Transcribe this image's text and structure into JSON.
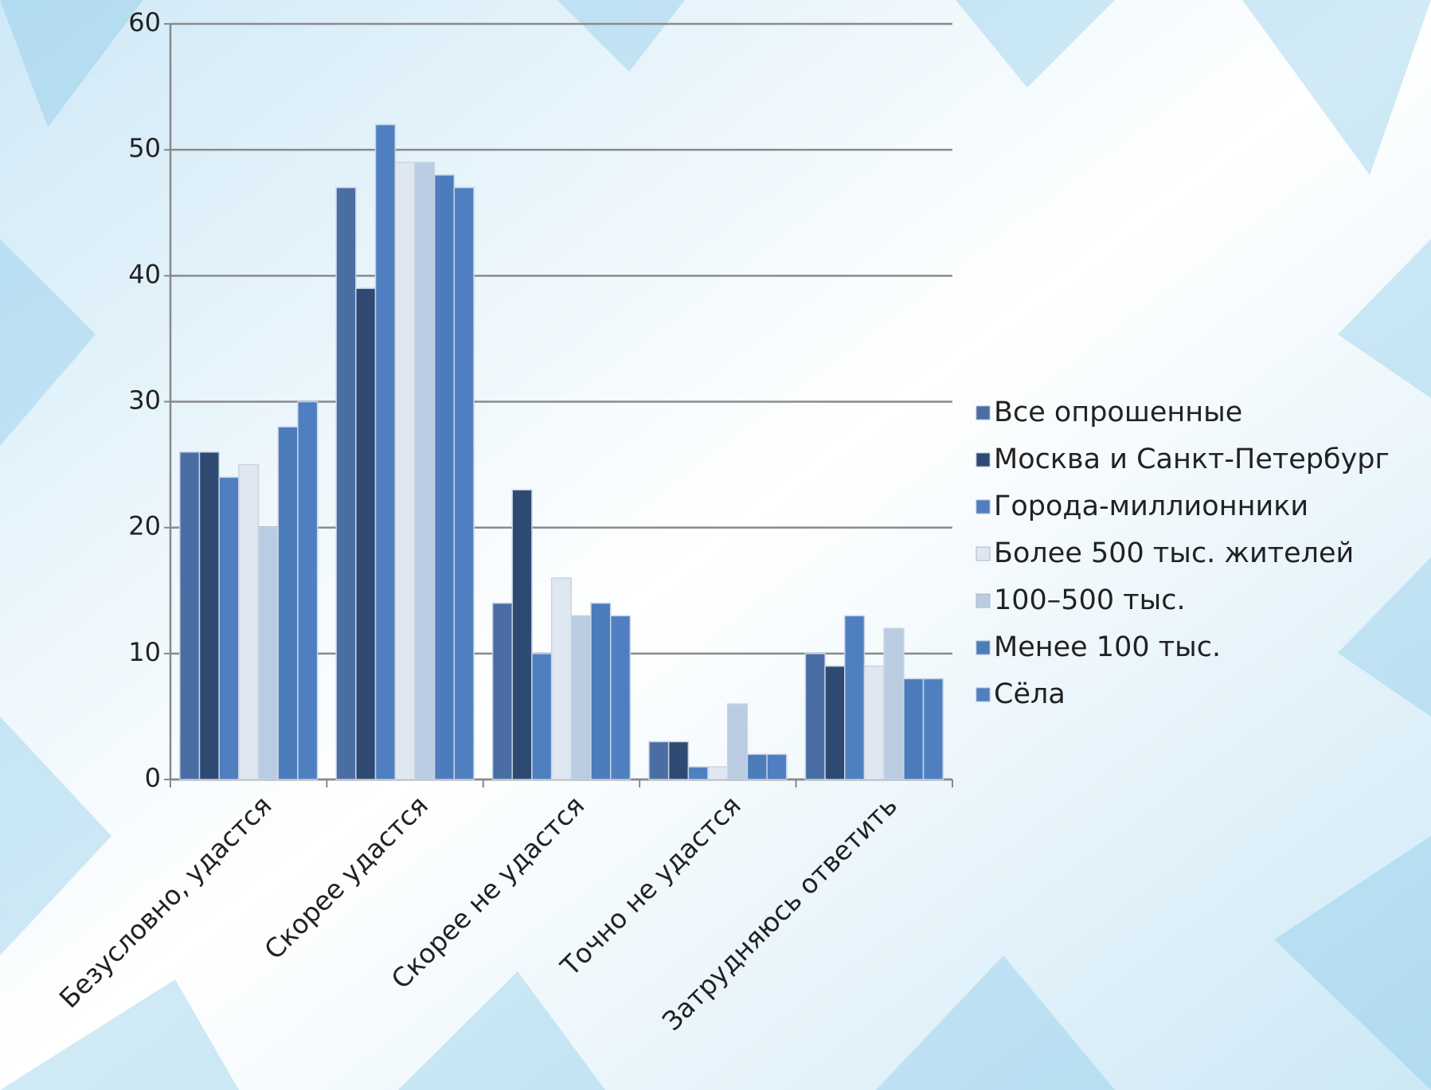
{
  "chart_data": {
    "type": "bar",
    "categories": [
      "Безусловно, удастся",
      "Скорее удастся",
      "Скорее не удастся",
      "Точно не удастся",
      "Затрудняюсь ответить"
    ],
    "series": [
      {
        "name": "Все опрошенные",
        "color": "#4a6ea3",
        "values": [
          26,
          47,
          14,
          3,
          10
        ]
      },
      {
        "name": "Москва и Санкт-Петербург",
        "color": "#2e4a72",
        "values": [
          26,
          39,
          23,
          3,
          9
        ]
      },
      {
        "name": "Города-миллионники",
        "color": "#4f7fc0",
        "values": [
          24,
          52,
          10,
          1,
          13
        ]
      },
      {
        "name": "Более 500 тыс. жителей",
        "color": "#dfe7f1",
        "values": [
          25,
          49,
          16,
          1,
          9
        ]
      },
      {
        "name": "100–500 тыс.",
        "color": "#b9cce2",
        "values": [
          20,
          49,
          13,
          6,
          12
        ]
      },
      {
        "name": "Менее 100 тыс.",
        "color": "#4d7cbd",
        "values": [
          28,
          48,
          14,
          2,
          8
        ]
      },
      {
        "name": "Сёла",
        "color": "#4f7fc0",
        "values": [
          30,
          47,
          13,
          2,
          8
        ]
      }
    ],
    "ylim": [
      0,
      60
    ],
    "yticks": [
      0,
      10,
      20,
      30,
      40,
      50,
      60
    ],
    "grid": true,
    "legend": "right"
  }
}
